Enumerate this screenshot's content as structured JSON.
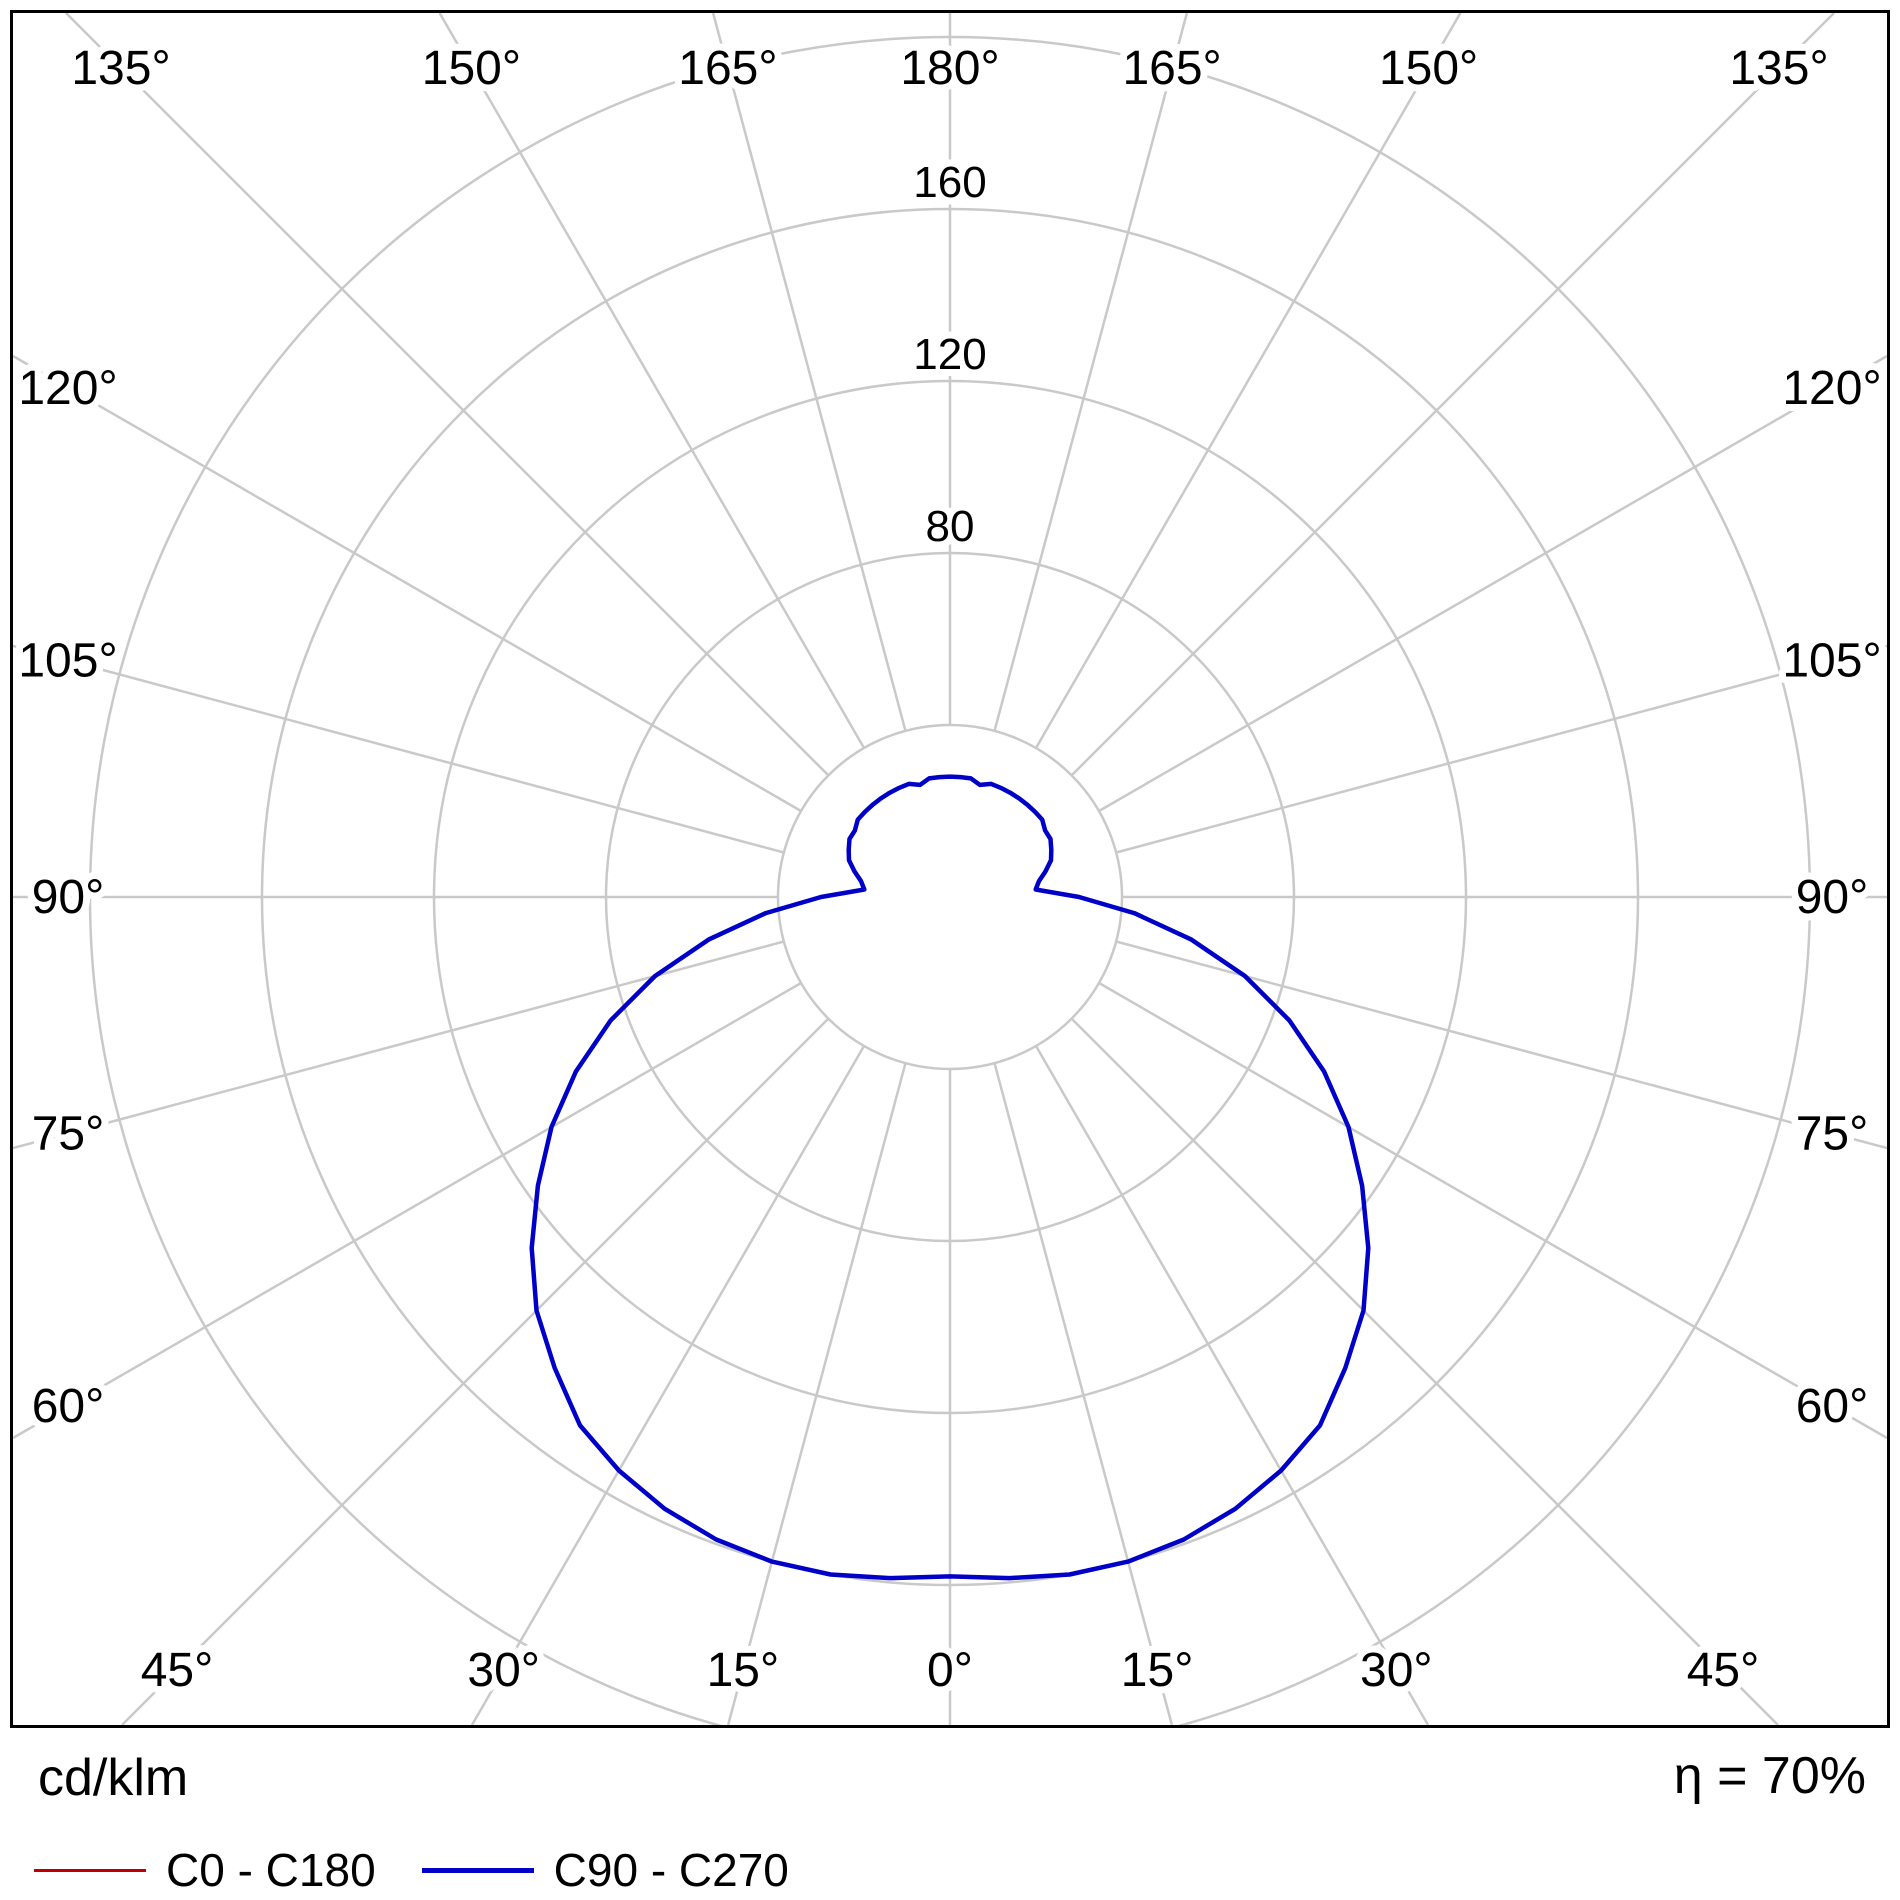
{
  "chart_data": {
    "type": "polar-line",
    "description": "Photometric polar luminous intensity distribution diagram",
    "units": "cd/klm",
    "efficiency": "η = 70%",
    "grid_color": "#c9c9c9",
    "frame_color": "#000000",
    "angle_labels": [
      "0°",
      "15°",
      "30°",
      "45°",
      "60°",
      "75°",
      "90°",
      "105°",
      "120°",
      "135°",
      "150°",
      "165°",
      "180°"
    ],
    "radial_labels": [
      "80",
      "120",
      "160"
    ],
    "ring_step": 40,
    "r_max": 200,
    "gamma_step_deg": 5,
    "mirrored": true,
    "legend_position": "bottom-left",
    "series": [
      {
        "name": "C0 - C180",
        "color": "#c00000",
        "stroke_width": 3,
        "gamma_from": 0,
        "gamma_to": 180,
        "values": [
          158,
          159,
          160,
          160,
          159,
          157,
          154,
          150,
          143,
          136,
          127,
          117,
          107,
          96,
          84,
          71,
          57,
          43,
          30,
          20,
          21,
          23,
          25,
          26,
          27,
          27,
          28,
          28,
          28,
          28,
          28,
          28,
          28,
          27,
          28,
          28,
          28
        ]
      },
      {
        "name": "C90 - C270",
        "color": "#0000c8",
        "stroke_width": 4.5,
        "gamma_from": 0,
        "gamma_to": 180,
        "values": [
          158,
          159,
          160,
          160,
          159,
          157,
          154,
          150,
          143,
          136,
          127,
          117,
          107,
          96,
          84,
          71,
          57,
          43,
          30,
          20,
          21,
          23,
          25,
          26,
          27,
          27,
          28,
          28,
          28,
          28,
          28,
          28,
          28,
          27,
          28,
          28,
          28
        ]
      }
    ]
  }
}
